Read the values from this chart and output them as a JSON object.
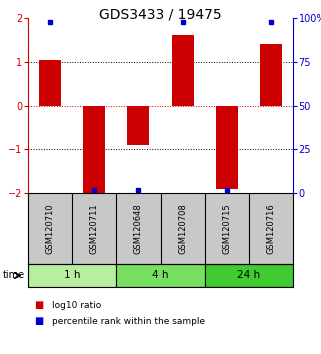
{
  "title": "GDS3433 / 19475",
  "samples": [
    "GSM120710",
    "GSM120711",
    "GSM120648",
    "GSM120708",
    "GSM120715",
    "GSM120716"
  ],
  "log10_ratios": [
    1.05,
    -2.0,
    -0.9,
    1.62,
    -1.9,
    1.4
  ],
  "percentile_ranks": [
    98,
    2,
    2,
    98,
    2,
    98
  ],
  "groups": [
    {
      "label": "1 h",
      "indices": [
        0,
        1
      ],
      "color": "#b8f0a0"
    },
    {
      "label": "4 h",
      "indices": [
        2,
        3
      ],
      "color": "#78e060"
    },
    {
      "label": "24 h",
      "indices": [
        4,
        5
      ],
      "color": "#40cc30"
    }
  ],
  "bar_color": "#cc0000",
  "dot_color": "#0000cc",
  "bar_width": 0.5,
  "ylim": [
    -2,
    2
  ],
  "y2lim": [
    0,
    100
  ],
  "yticks": [
    -2,
    -1,
    0,
    1,
    2
  ],
  "y2ticks": [
    0,
    25,
    50,
    75,
    100
  ],
  "zero_line_color": "#cc0000",
  "bg_color": "#ffffff",
  "plot_bg_color": "#ffffff",
  "legend_red_label": "log10 ratio",
  "legend_blue_label": "percentile rank within the sample",
  "time_label": "time",
  "header_bg": "#c8c8c8",
  "title_fontsize": 10,
  "tick_fontsize": 7,
  "label_fontsize": 7
}
